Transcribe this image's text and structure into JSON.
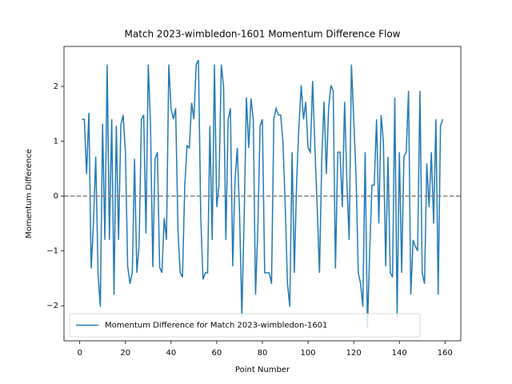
{
  "chart_data": {
    "type": "line",
    "title": "Match 2023-wimbledon-1601 Momentum Difference Flow",
    "x_label": "Point Number",
    "y_label": "Momentum Difference",
    "x": [
      1,
      2,
      3,
      4,
      5,
      6,
      7,
      8,
      9,
      10,
      11,
      12,
      13,
      14,
      15,
      16,
      17,
      18,
      19,
      20,
      21,
      22,
      23,
      24,
      25,
      26,
      27,
      28,
      29,
      30,
      31,
      32,
      33,
      34,
      35,
      36,
      37,
      38,
      39,
      40,
      41,
      42,
      43,
      44,
      45,
      46,
      47,
      48,
      49,
      50,
      51,
      52,
      53,
      54,
      55,
      56,
      57,
      58,
      59,
      60,
      61,
      62,
      63,
      64,
      65,
      66,
      67,
      68,
      69,
      70,
      71,
      72,
      73,
      74,
      75,
      76,
      77,
      78,
      79,
      80,
      81,
      82,
      83,
      84,
      85,
      86,
      87,
      88,
      89,
      90,
      91,
      92,
      93,
      94,
      95,
      96,
      97,
      98,
      99,
      100,
      101,
      102,
      103,
      104,
      105,
      106,
      107,
      108,
      109,
      110,
      111,
      112,
      113,
      114,
      115,
      116,
      117,
      118,
      119,
      120,
      121,
      122,
      123,
      124,
      125,
      126,
      127,
      128,
      129,
      130,
      131,
      132,
      133,
      134,
      135,
      136,
      137,
      138,
      139,
      140,
      141,
      142,
      143,
      144,
      145,
      146,
      147,
      148,
      149,
      150,
      151,
      152,
      153,
      154,
      155,
      156,
      157,
      158,
      159
    ],
    "series": [
      {
        "name": "Momentum Difference for Match 2023-wimbledon-1601",
        "color": "#1f77b4",
        "values": [
          1.4,
          1.4,
          0.4,
          1.52,
          -1.32,
          -0.5,
          0.72,
          -1.4,
          -2.02,
          1.32,
          -0.8,
          2.4,
          -0.8,
          1.4,
          -1.8,
          1.28,
          -0.8,
          1.3,
          1.48,
          0.8,
          -1.28,
          -1.6,
          -1.4,
          0.68,
          -1.4,
          -0.9,
          1.4,
          1.48,
          -0.68,
          2.4,
          1.3,
          -1.3,
          0.68,
          0.8,
          -1.3,
          -1.4,
          -0.4,
          -0.8,
          2.4,
          1.6,
          1.4,
          1.6,
          -0.6,
          -1.4,
          -1.48,
          0.2,
          0.92,
          0.88,
          1.7,
          1.4,
          2.4,
          2.48,
          -0.4,
          -1.52,
          -1.4,
          -1.4,
          1.28,
          -0.8,
          2.4,
          -0.2,
          0.2,
          2.4,
          2.0,
          -0.8,
          1.4,
          1.6,
          -1.28,
          0.28,
          0.88,
          -0.3,
          -2.2,
          -0.4,
          1.8,
          0.88,
          1.78,
          1.4,
          -1.8,
          -0.6,
          1.28,
          1.4,
          -1.4,
          -1.4,
          -1.4,
          -1.6,
          1.4,
          1.6,
          1.48,
          1.48,
          1.0,
          -0.2,
          -1.6,
          -2.02,
          0.8,
          -1.4,
          0.28,
          1.28,
          2.02,
          1.4,
          1.72,
          0.88,
          0.8,
          2.1,
          0.88,
          -0.2,
          -1.4,
          0.68,
          1.72,
          0.4,
          1.6,
          2.02,
          1.92,
          -1.32,
          0.8,
          0.8,
          -0.2,
          1.72,
          0.28,
          -0.8,
          2.4,
          1.4,
          0.4,
          -1.4,
          -1.6,
          -2.02,
          0.8,
          -2.4,
          -1.0,
          0.2,
          0.2,
          1.4,
          -0.5,
          1.48,
          1.0,
          -1.28,
          0.72,
          -1.4,
          -1.48,
          1.8,
          -2.2,
          0.8,
          -1.4,
          0.72,
          0.8,
          1.92,
          -1.8,
          -0.8,
          -0.92,
          -1.0,
          1.92,
          -1.4,
          -1.6,
          0.6,
          -0.2,
          0.8,
          -0.5,
          1.4,
          -1.8,
          1.28,
          1.4
        ]
      }
    ],
    "reference_line": {
      "value": 0,
      "color": "#808080",
      "style": "dashed"
    },
    "xlim": [
      -6.9,
      166.9
    ],
    "ylim": [
      -2.64,
      2.73
    ],
    "xticks": [
      0,
      20,
      40,
      60,
      80,
      100,
      120,
      140,
      160
    ],
    "yticks": [
      {
        "value": -2,
        "label": "−2"
      },
      {
        "value": -1,
        "label": "−1"
      },
      0,
      1,
      2
    ],
    "legend": "lower left",
    "grid": false
  }
}
